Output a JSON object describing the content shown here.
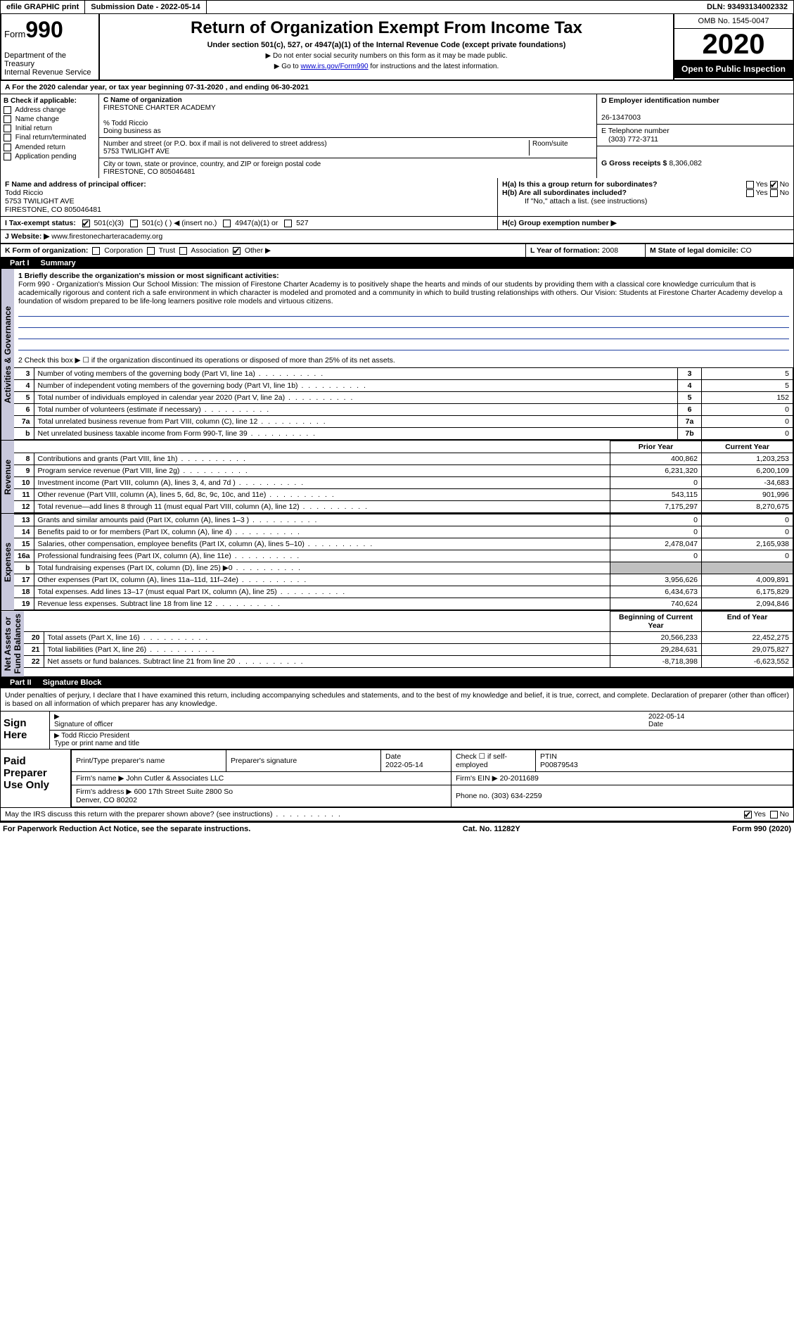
{
  "top": {
    "efile": "efile GRAPHIC print",
    "submission": "Submission Date - 2022-05-14",
    "dln": "DLN: 93493134002332"
  },
  "header": {
    "form_word": "Form",
    "form_num": "990",
    "dept": "Department of the Treasury\nInternal Revenue Service",
    "title": "Return of Organization Exempt From Income Tax",
    "subtitle": "Under section 501(c), 527, or 4947(a)(1) of the Internal Revenue Code (except private foundations)",
    "instr1": "▶ Do not enter social security numbers on this form as it may be made public.",
    "instr2_pre": "▶ Go to ",
    "instr2_link": "www.irs.gov/Form990",
    "instr2_post": " for instructions and the latest information.",
    "omb": "OMB No. 1545-0047",
    "year": "2020",
    "open": "Open to Public Inspection"
  },
  "line_a": "A For the 2020 calendar year, or tax year beginning 07-31-2020   , and ending 06-30-2021",
  "box_b": {
    "title": "B Check if applicable:",
    "items": [
      "Address change",
      "Name change",
      "Initial return",
      "Final return/terminated",
      "Amended return",
      "Application pending"
    ]
  },
  "box_c": {
    "name_lbl": "C Name of organization",
    "name": "FIRESTONE CHARTER ACADEMY",
    "care_of": "% Todd Riccio",
    "dba_lbl": "Doing business as",
    "street_lbl": "Number and street (or P.O. box if mail is not delivered to street address)",
    "room_lbl": "Room/suite",
    "street": "5753 TWILIGHT AVE",
    "city_lbl": "City or town, state or province, country, and ZIP or foreign postal code",
    "city": "FIRESTONE, CO  805046481"
  },
  "box_d": {
    "lbl": "D Employer identification number",
    "val": "26-1347003"
  },
  "box_e": {
    "lbl": "E Telephone number",
    "val": "(303) 772-3711"
  },
  "box_g": {
    "lbl": "G Gross receipts $",
    "val": "8,306,082"
  },
  "box_f": {
    "lbl": "F  Name and address of principal officer:",
    "name": "Todd Riccio",
    "addr1": "5753 TWILIGHT AVE",
    "addr2": "FIRESTONE, CO  805046481"
  },
  "box_h": {
    "ha": "H(a)  Is this a group return for subordinates?",
    "hb": "H(b)  Are all subordinates included?",
    "hnote": "If \"No,\" attach a list. (see instructions)",
    "hc": "H(c)  Group exemption number ▶"
  },
  "box_i": {
    "lbl": "I  Tax-exempt status:",
    "opts": [
      "501(c)(3)",
      "501(c) (  ) ◀ (insert no.)",
      "4947(a)(1) or",
      "527"
    ]
  },
  "box_j": {
    "lbl": "J Website: ▶",
    "val": "www.firestonecharteracademy.org"
  },
  "box_k": {
    "lbl": "K Form of organization:",
    "opts": [
      "Corporation",
      "Trust",
      "Association",
      "Other ▶"
    ]
  },
  "box_l": {
    "lbl": "L Year of formation:",
    "val": "2008"
  },
  "box_m": {
    "lbl": "M State of legal domicile:",
    "val": "CO"
  },
  "parts": {
    "p1": "Part I",
    "p1t": "Summary",
    "p2": "Part II",
    "p2t": "Signature Block"
  },
  "sidelabels": {
    "ag": "Activities & Governance",
    "rev": "Revenue",
    "exp": "Expenses",
    "net": "Net Assets or\nFund Balances"
  },
  "summary": {
    "line1_lbl": "1   Briefly describe the organization's mission or most significant activities:",
    "mission": "Form 990 - Organization's Mission Our School Mission: The mission of Firestone Charter Academy is to positively shape the hearts and minds of our students by providing them with a classical core knowledge curriculum that is academically rigorous and content rich a safe environment in which character is modeled and promoted and a community in which to build trusting relationships with others. Our Vision: Students at Firestone Charter Academy develop a foundation of wisdom prepared to be life-long learners positive role models and virtuous citizens.",
    "line2": "2   Check this box ▶ ☐  if the organization discontinued its operations or disposed of more than 25% of its net assets.",
    "rows_ag": [
      {
        "n": "3",
        "d": "Number of voting members of the governing body (Part VI, line 1a)",
        "c": "3",
        "v": "5"
      },
      {
        "n": "4",
        "d": "Number of independent voting members of the governing body (Part VI, line 1b)",
        "c": "4",
        "v": "5"
      },
      {
        "n": "5",
        "d": "Total number of individuals employed in calendar year 2020 (Part V, line 2a)",
        "c": "5",
        "v": "152"
      },
      {
        "n": "6",
        "d": "Total number of volunteers (estimate if necessary)",
        "c": "6",
        "v": "0"
      },
      {
        "n": "7a",
        "d": "Total unrelated business revenue from Part VIII, column (C), line 12",
        "c": "7a",
        "v": "0"
      },
      {
        "n": "b",
        "d": "Net unrelated business taxable income from Form 990-T, line 39",
        "c": "7b",
        "v": "0"
      }
    ],
    "col_hdr_prior": "Prior Year",
    "col_hdr_current": "Current Year",
    "rows_rev": [
      {
        "n": "8",
        "d": "Contributions and grants (Part VIII, line 1h)",
        "p": "400,862",
        "c": "1,203,253"
      },
      {
        "n": "9",
        "d": "Program service revenue (Part VIII, line 2g)",
        "p": "6,231,320",
        "c": "6,200,109"
      },
      {
        "n": "10",
        "d": "Investment income (Part VIII, column (A), lines 3, 4, and 7d )",
        "p": "0",
        "c": "-34,683"
      },
      {
        "n": "11",
        "d": "Other revenue (Part VIII, column (A), lines 5, 6d, 8c, 9c, 10c, and 11e)",
        "p": "543,115",
        "c": "901,996"
      },
      {
        "n": "12",
        "d": "Total revenue—add lines 8 through 11 (must equal Part VIII, column (A), line 12)",
        "p": "7,175,297",
        "c": "8,270,675"
      }
    ],
    "rows_exp": [
      {
        "n": "13",
        "d": "Grants and similar amounts paid (Part IX, column (A), lines 1–3 )",
        "p": "0",
        "c": "0"
      },
      {
        "n": "14",
        "d": "Benefits paid to or for members (Part IX, column (A), line 4)",
        "p": "0",
        "c": "0"
      },
      {
        "n": "15",
        "d": "Salaries, other compensation, employee benefits (Part IX, column (A), lines 5–10)",
        "p": "2,478,047",
        "c": "2,165,938"
      },
      {
        "n": "16a",
        "d": "Professional fundraising fees (Part IX, column (A), line 11e)",
        "p": "0",
        "c": "0"
      },
      {
        "n": "b",
        "d": "Total fundraising expenses (Part IX, column (D), line 25) ▶0",
        "p": "",
        "c": "",
        "shaded": true
      },
      {
        "n": "17",
        "d": "Other expenses (Part IX, column (A), lines 11a–11d, 11f–24e)",
        "p": "3,956,626",
        "c": "4,009,891"
      },
      {
        "n": "18",
        "d": "Total expenses. Add lines 13–17 (must equal Part IX, column (A), line 25)",
        "p": "6,434,673",
        "c": "6,175,829"
      },
      {
        "n": "19",
        "d": "Revenue less expenses. Subtract line 18 from line 12",
        "p": "740,624",
        "c": "2,094,846"
      }
    ],
    "col_hdr_beg": "Beginning of Current Year",
    "col_hdr_end": "End of Year",
    "rows_net": [
      {
        "n": "20",
        "d": "Total assets (Part X, line 16)",
        "p": "20,566,233",
        "c": "22,452,275"
      },
      {
        "n": "21",
        "d": "Total liabilities (Part X, line 26)",
        "p": "29,284,631",
        "c": "29,075,827"
      },
      {
        "n": "22",
        "d": "Net assets or fund balances. Subtract line 21 from line 20",
        "p": "-8,718,398",
        "c": "-6,623,552"
      }
    ]
  },
  "sig": {
    "declare": "Under penalties of perjury, I declare that I have examined this return, including accompanying schedules and statements, and to the best of my knowledge and belief, it is true, correct, and complete. Declaration of preparer (other than officer) is based on all information of which preparer has any knowledge.",
    "sign_here": "Sign Here",
    "sig_officer": "Signature of officer",
    "date": "Date",
    "date_val": "2022-05-14",
    "officer_name": "Todd Riccio  President",
    "officer_type": "Type or print name and title",
    "paid": "Paid Preparer Use Only",
    "pp_name_lbl": "Print/Type preparer's name",
    "pp_sig_lbl": "Preparer's signature",
    "pp_date_lbl": "Date",
    "pp_date": "2022-05-14",
    "pp_self": "Check ☐ if self-employed",
    "ptin_lbl": "PTIN",
    "ptin": "P00879543",
    "firm_name_lbl": "Firm's name    ▶",
    "firm_name": "John Cutler & Associates LLC",
    "firm_ein_lbl": "Firm's EIN ▶",
    "firm_ein": "20-2011689",
    "firm_addr_lbl": "Firm's address ▶",
    "firm_addr": "600 17th Street Suite 2800 So\nDenver, CO  80202",
    "phone_lbl": "Phone no.",
    "phone": "(303) 634-2259",
    "discuss": "May the IRS discuss this return with the preparer shown above? (see instructions)",
    "yes": "Yes",
    "no": "No"
  },
  "foot": {
    "l": "For Paperwork Reduction Act Notice, see the separate instructions.",
    "m": "Cat. No. 11282Y",
    "r": "Form 990 (2020)"
  },
  "colors": {
    "sidebar": "#c8c8dc",
    "link": "#0000cc",
    "underline": "#2040a0"
  }
}
